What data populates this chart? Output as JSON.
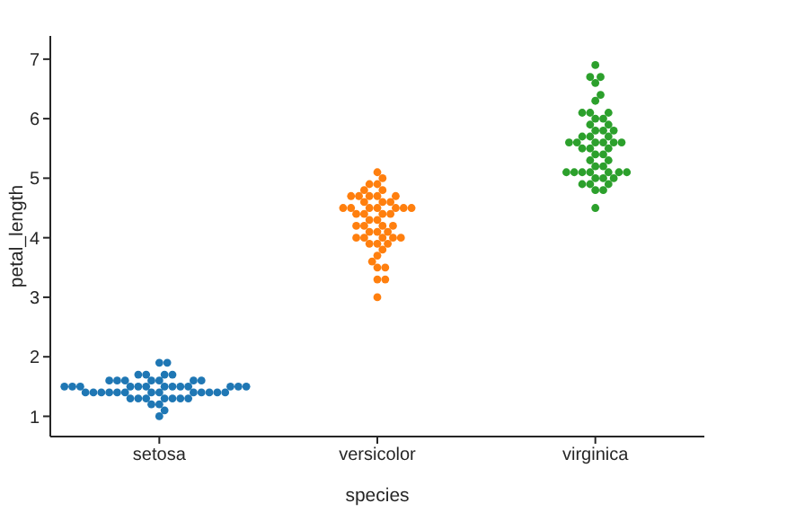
{
  "chart_data": {
    "type": "scatter",
    "xlabel": "species",
    "ylabel": "petal_length",
    "categories": [
      "setosa",
      "versicolor",
      "virginica"
    ],
    "ylim": [
      0.66,
      7.39
    ],
    "yticks": [
      1,
      2,
      3,
      4,
      5,
      6,
      7
    ],
    "marker": "circle",
    "legend": false,
    "grid": false,
    "series": [
      {
        "color": "#1f77b4",
        "x": [
          "setosa",
          "setosa",
          "setosa",
          "setosa",
          "setosa",
          "setosa",
          "setosa",
          "setosa",
          "setosa",
          "setosa",
          "setosa",
          "setosa",
          "setosa",
          "setosa",
          "setosa",
          "setosa",
          "setosa",
          "setosa",
          "setosa",
          "setosa",
          "setosa",
          "setosa",
          "setosa",
          "setosa",
          "setosa",
          "setosa",
          "setosa",
          "setosa",
          "setosa",
          "setosa",
          "setosa",
          "setosa",
          "setosa",
          "setosa",
          "setosa",
          "setosa",
          "setosa",
          "setosa",
          "setosa",
          "setosa",
          "setosa",
          "setosa",
          "setosa",
          "setosa",
          "setosa",
          "setosa",
          "setosa",
          "setosa",
          "setosa",
          "setosa"
        ],
        "values": [
          1.4,
          1.4,
          1.3,
          1.5,
          1.4,
          1.7,
          1.4,
          1.5,
          1.4,
          1.5,
          1.5,
          1.6,
          1.4,
          1.1,
          1.2,
          1.5,
          1.3,
          1.4,
          1.7,
          1.5,
          1.7,
          1.5,
          1.0,
          1.7,
          1.9,
          1.6,
          1.6,
          1.5,
          1.4,
          1.6,
          1.6,
          1.5,
          1.5,
          1.4,
          1.5,
          1.2,
          1.3,
          1.4,
          1.3,
          1.5,
          1.3,
          1.3,
          1.3,
          1.6,
          1.9,
          1.4,
          1.6,
          1.4,
          1.5,
          1.4
        ]
      },
      {
        "color": "#ff7f0e",
        "x": [
          "versicolor",
          "versicolor",
          "versicolor",
          "versicolor",
          "versicolor",
          "versicolor",
          "versicolor",
          "versicolor",
          "versicolor",
          "versicolor",
          "versicolor",
          "versicolor",
          "versicolor",
          "versicolor",
          "versicolor",
          "versicolor",
          "versicolor",
          "versicolor",
          "versicolor",
          "versicolor",
          "versicolor",
          "versicolor",
          "versicolor",
          "versicolor",
          "versicolor",
          "versicolor",
          "versicolor",
          "versicolor",
          "versicolor",
          "versicolor",
          "versicolor",
          "versicolor",
          "versicolor",
          "versicolor",
          "versicolor",
          "versicolor",
          "versicolor",
          "versicolor",
          "versicolor",
          "versicolor",
          "versicolor",
          "versicolor",
          "versicolor",
          "versicolor",
          "versicolor",
          "versicolor",
          "versicolor",
          "versicolor",
          "versicolor",
          "versicolor"
        ],
        "values": [
          4.7,
          4.5,
          4.9,
          4.0,
          4.6,
          4.5,
          4.7,
          3.3,
          4.6,
          3.9,
          3.5,
          4.2,
          4.0,
          4.7,
          3.6,
          4.4,
          4.5,
          4.1,
          4.5,
          3.9,
          4.8,
          4.0,
          4.9,
          4.7,
          4.3,
          4.4,
          4.8,
          5.0,
          4.5,
          3.5,
          3.8,
          3.7,
          3.9,
          5.1,
          4.5,
          4.5,
          4.7,
          4.4,
          4.1,
          4.0,
          4.4,
          4.6,
          4.0,
          3.3,
          4.2,
          4.2,
          4.2,
          4.3,
          3.0,
          4.1
        ]
      },
      {
        "color": "#2ca02c",
        "x": [
          "virginica",
          "virginica",
          "virginica",
          "virginica",
          "virginica",
          "virginica",
          "virginica",
          "virginica",
          "virginica",
          "virginica",
          "virginica",
          "virginica",
          "virginica",
          "virginica",
          "virginica",
          "virginica",
          "virginica",
          "virginica",
          "virginica",
          "virginica",
          "virginica",
          "virginica",
          "virginica",
          "virginica",
          "virginica",
          "virginica",
          "virginica",
          "virginica",
          "virginica",
          "virginica",
          "virginica",
          "virginica",
          "virginica",
          "virginica",
          "virginica",
          "virginica",
          "virginica",
          "virginica",
          "virginica",
          "virginica",
          "virginica",
          "virginica",
          "virginica",
          "virginica",
          "virginica",
          "virginica",
          "virginica",
          "virginica",
          "virginica",
          "virginica"
        ],
        "values": [
          6.0,
          5.1,
          5.9,
          5.6,
          5.8,
          6.6,
          4.5,
          6.3,
          5.8,
          6.1,
          5.1,
          5.3,
          5.5,
          5.0,
          5.1,
          5.3,
          5.5,
          6.7,
          6.9,
          5.0,
          5.7,
          4.9,
          6.7,
          4.9,
          5.7,
          6.0,
          4.8,
          4.9,
          5.6,
          5.8,
          6.1,
          6.4,
          5.6,
          5.1,
          5.6,
          6.1,
          5.6,
          5.5,
          4.8,
          5.4,
          5.6,
          5.1,
          5.1,
          5.9,
          5.7,
          5.2,
          5.0,
          5.2,
          5.4,
          5.1
        ]
      }
    ]
  }
}
